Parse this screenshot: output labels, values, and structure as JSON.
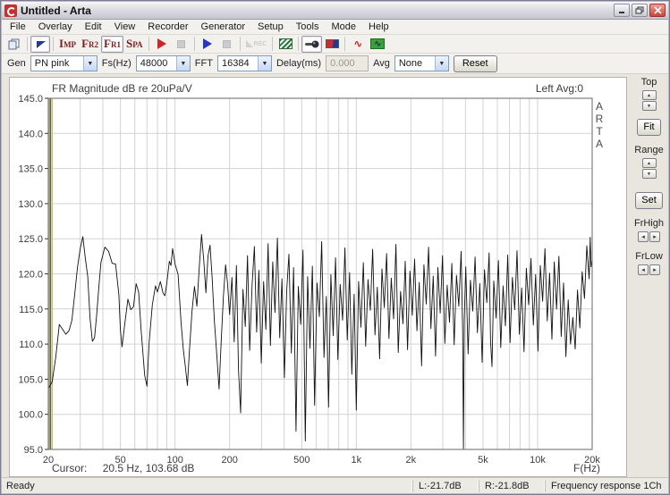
{
  "window": {
    "title": "Untitled - Arta"
  },
  "menu": {
    "items": [
      "File",
      "Overlay",
      "Edit",
      "View",
      "Recorder",
      "Generator",
      "Setup",
      "Tools",
      "Mode",
      "Help"
    ]
  },
  "toolbar": {
    "imp": "IMP",
    "fr2": "FR2",
    "fr1": "FR1",
    "spa": "SPA",
    "rec": "REC"
  },
  "controls": {
    "gen_label": "Gen",
    "gen_value": "PN pink",
    "fs_label": "Fs(Hz)",
    "fs_value": "48000",
    "fft_label": "FFT",
    "fft_value": "16384",
    "delay_label": "Delay(ms)",
    "delay_value": "0.000",
    "avg_label": "Avg",
    "avg_value": "None",
    "reset_label": "Reset"
  },
  "plot": {
    "title": "FR Magnitude dB re 20uPa/V",
    "channel_info": "Left  Avg:0",
    "arta": [
      "A",
      "R",
      "T",
      "A"
    ],
    "cursor_label": "Cursor:",
    "cursor_value": "20.5 Hz, 103.68 dB",
    "xaxis_label": "F(Hz)"
  },
  "side_panel": {
    "top_label": "Top",
    "fit_label": "Fit",
    "range_label": "Range",
    "set_label": "Set",
    "frhigh_label": "FrHigh",
    "frlow_label": "FrLow"
  },
  "status": {
    "ready": "Ready",
    "left_db": "L:-21.7dB",
    "right_db": "R:-21.8dB",
    "mode": "Frequency response 1Ch"
  },
  "colors": {
    "trace": "#111111",
    "grid": "#d2d2d2",
    "axis_band": "#d9d9a8",
    "border": "#7f7f7f",
    "cursor": "#222222"
  },
  "chart_data": {
    "type": "line",
    "title": "FR Magnitude dB re 20uPa/V",
    "xlabel": "F(Hz)",
    "ylabel": "dB re 20uPa/V",
    "x_scale": "log",
    "fmin": 20,
    "fmax": 20000,
    "ymin": 95,
    "ymax": 145,
    "cursor_hz": 20.5,
    "cursor_db": 103.68,
    "x_ticks": [
      {
        "f": 20,
        "label": "20"
      },
      {
        "f": 50,
        "label": "50"
      },
      {
        "f": 100,
        "label": "100"
      },
      {
        "f": 200,
        "label": "200"
      },
      {
        "f": 500,
        "label": "500"
      },
      {
        "f": 1000,
        "label": "1k"
      },
      {
        "f": 2000,
        "label": "2k"
      },
      {
        "f": 5000,
        "label": "5k"
      },
      {
        "f": 10000,
        "label": "10k"
      },
      {
        "f": 20000,
        "label": "20k"
      }
    ],
    "grid_freqs": [
      30,
      40,
      50,
      60,
      70,
      80,
      90,
      100,
      200,
      300,
      400,
      500,
      600,
      700,
      800,
      900,
      1000,
      2000,
      3000,
      4000,
      5000,
      6000,
      7000,
      8000,
      9000,
      10000,
      20000
    ],
    "y_ticks": [
      {
        "v": 145,
        "label": "145.0"
      },
      {
        "v": 140,
        "label": "140.0"
      },
      {
        "v": 135,
        "label": "135.0"
      },
      {
        "v": 130,
        "label": "130.0"
      },
      {
        "v": 125,
        "label": "125.0"
      },
      {
        "v": 120,
        "label": "120.0"
      },
      {
        "v": 115,
        "label": "115.0"
      },
      {
        "v": 110,
        "label": "110.0"
      },
      {
        "v": 105,
        "label": "105.0"
      },
      {
        "v": 100,
        "label": "100.0"
      },
      {
        "v": 95,
        "label": "95.0"
      }
    ],
    "series": [
      {
        "name": "Left",
        "points": [
          [
            20,
            103.7
          ],
          [
            21,
            104.6
          ],
          [
            22,
            108.2
          ],
          [
            23,
            112.8
          ],
          [
            24,
            112.1
          ],
          [
            25,
            111.4
          ],
          [
            26,
            111.9
          ],
          [
            27,
            113.4
          ],
          [
            28,
            117.2
          ],
          [
            29,
            121.0
          ],
          [
            30,
            123.6
          ],
          [
            31,
            125.3
          ],
          [
            32,
            122.2
          ],
          [
            33,
            119.6
          ],
          [
            34,
            113.6
          ],
          [
            35,
            110.4
          ],
          [
            36,
            110.9
          ],
          [
            37,
            114.2
          ],
          [
            38,
            118.1
          ],
          [
            39,
            121.6
          ],
          [
            41,
            123.8
          ],
          [
            43,
            123.2
          ],
          [
            45,
            121.5
          ],
          [
            47,
            121.4
          ],
          [
            49,
            117.0
          ],
          [
            50,
            112.0
          ],
          [
            51,
            109.6
          ],
          [
            53,
            113.2
          ],
          [
            55,
            116.4
          ],
          [
            57,
            114.9
          ],
          [
            59,
            115.3
          ],
          [
            61,
            118.6
          ],
          [
            63,
            117.4
          ],
          [
            65,
            112.1
          ],
          [
            68,
            105.6
          ],
          [
            70,
            104.0
          ],
          [
            72,
            110.2
          ],
          [
            75,
            115.6
          ],
          [
            78,
            118.3
          ],
          [
            80,
            117.4
          ],
          [
            83,
            118.9
          ],
          [
            86,
            117.2
          ],
          [
            88,
            116.9
          ],
          [
            90,
            118.6
          ],
          [
            93,
            121.8
          ],
          [
            95,
            121.2
          ],
          [
            97,
            123.6
          ],
          [
            100,
            121.4
          ],
          [
            104,
            119.9
          ],
          [
            108,
            113.1
          ],
          [
            111,
            109.4
          ],
          [
            114,
            106.8
          ],
          [
            117,
            104.1
          ],
          [
            120,
            108.9
          ],
          [
            124,
            114.6
          ],
          [
            128,
            118.2
          ],
          [
            132,
            115.4
          ],
          [
            136,
            120.8
          ],
          [
            140,
            125.6
          ],
          [
            144,
            121.9
          ],
          [
            148,
            117.3
          ],
          [
            152,
            122.5
          ],
          [
            156,
            124.1
          ],
          [
            160,
            119.8
          ],
          [
            165,
            113.2
          ],
          [
            170,
            108.4
          ],
          [
            175,
            103.6
          ],
          [
            180,
            110.7
          ],
          [
            185,
            116.9
          ],
          [
            190,
            121.3
          ],
          [
            195,
            118.6
          ],
          [
            200,
            114.2
          ],
          [
            206,
            119.5
          ],
          [
            212,
            110.3
          ],
          [
            218,
            121.2
          ],
          [
            224,
            106.4
          ],
          [
            230,
            100.2
          ],
          [
            237,
            117.8
          ],
          [
            244,
            112.5
          ],
          [
            251,
            122.6
          ],
          [
            258,
            109.1
          ],
          [
            266,
            118.4
          ],
          [
            274,
            123.9
          ],
          [
            282,
            111.7
          ],
          [
            290,
            120.5
          ],
          [
            299,
            107.3
          ],
          [
            308,
            118.9
          ],
          [
            317,
            112.1
          ],
          [
            326,
            124.3
          ],
          [
            336,
            109.8
          ],
          [
            346,
            121.7
          ],
          [
            356,
            114.5
          ],
          [
            367,
            125.1
          ],
          [
            378,
            110.9
          ],
          [
            389,
            119.3
          ],
          [
            401,
            105.2
          ],
          [
            413,
            117.6
          ],
          [
            425,
            122.8
          ],
          [
            438,
            108.7
          ],
          [
            451,
            120.9
          ],
          [
            465,
            97.6
          ],
          [
            479,
            118.2
          ],
          [
            493,
            112.8
          ],
          [
            508,
            123.4
          ],
          [
            523,
            96.2
          ],
          [
            539,
            119.6
          ],
          [
            555,
            109.4
          ],
          [
            572,
            121.1
          ],
          [
            589,
            101.3
          ],
          [
            607,
            118.7
          ],
          [
            625,
            113.9
          ],
          [
            644,
            124.6
          ],
          [
            663,
            108.1
          ],
          [
            683,
            116.8
          ],
          [
            703,
            101.0
          ],
          [
            724,
            119.9
          ],
          [
            746,
            111.2
          ],
          [
            768,
            122.3
          ],
          [
            791,
            107.8
          ],
          [
            815,
            118.5
          ],
          [
            840,
            113.4
          ],
          [
            865,
            123.7
          ],
          [
            891,
            110.6
          ],
          [
            918,
            120.2
          ],
          [
            945,
            105.7
          ],
          [
            973,
            117.1
          ],
          [
            1000,
            100.6
          ],
          [
            1030,
            118.9
          ],
          [
            1061,
            112.4
          ],
          [
            1093,
            121.6
          ],
          [
            1126,
            109.7
          ],
          [
            1160,
            119.2
          ],
          [
            1195,
            114.8
          ],
          [
            1231,
            123.5
          ],
          [
            1268,
            111.3
          ],
          [
            1306,
            118.1
          ],
          [
            1345,
            107.9
          ],
          [
            1385,
            120.7
          ],
          [
            1427,
            115.2
          ],
          [
            1470,
            122.9
          ],
          [
            1514,
            110.8
          ],
          [
            1559,
            119.4
          ],
          [
            1606,
            113.6
          ],
          [
            1654,
            124.2
          ],
          [
            1704,
            108.8
          ],
          [
            1755,
            117.5
          ],
          [
            1808,
            112.9
          ],
          [
            1862,
            121.8
          ],
          [
            1918,
            109.2
          ],
          [
            1976,
            120.4
          ],
          [
            2035,
            114.1
          ],
          [
            2096,
            122.1
          ],
          [
            2159,
            111.9
          ],
          [
            2224,
            118.8
          ],
          [
            2291,
            106.9
          ],
          [
            2360,
            121.3
          ],
          [
            2431,
            115.7
          ],
          [
            2504,
            123.8
          ],
          [
            2579,
            112.2
          ],
          [
            2656,
            119.7
          ],
          [
            2736,
            108.3
          ],
          [
            2818,
            120.9
          ],
          [
            2903,
            114.4
          ],
          [
            2990,
            122.6
          ],
          [
            3080,
            110.1
          ],
          [
            3172,
            118.4
          ],
          [
            3267,
            113.1
          ],
          [
            3365,
            121.5
          ],
          [
            3466,
            109.9
          ],
          [
            3570,
            119.8
          ],
          [
            3677,
            115.4
          ],
          [
            3787,
            123.2
          ],
          [
            3860,
            112.0
          ],
          [
            3900,
            95.0
          ],
          [
            3940,
            113.5
          ],
          [
            4018,
            121.0
          ],
          [
            4138,
            108.6
          ],
          [
            4262,
            119.1
          ],
          [
            4390,
            114.7
          ],
          [
            4522,
            122.4
          ],
          [
            4658,
            111.6
          ],
          [
            4798,
            118.6
          ],
          [
            4942,
            107.4
          ],
          [
            5090,
            120.6
          ],
          [
            5243,
            115.9
          ],
          [
            5400,
            123.0
          ],
          [
            5500,
            110.4
          ],
          [
            5600,
            106.8
          ],
          [
            5730,
            119.0
          ],
          [
            5902,
            113.7
          ],
          [
            6079,
            121.9
          ],
          [
            6261,
            109.5
          ],
          [
            6449,
            118.3
          ],
          [
            6642,
            112.6
          ],
          [
            6841,
            122.7
          ],
          [
            7046,
            110.2
          ],
          [
            7257,
            119.5
          ],
          [
            7475,
            114.9
          ],
          [
            7699,
            123.3
          ],
          [
            7930,
            111.4
          ],
          [
            8168,
            118.0
          ],
          [
            8413,
            108.9
          ],
          [
            8665,
            120.8
          ],
          [
            8925,
            115.6
          ],
          [
            9193,
            122.2
          ],
          [
            9469,
            112.7
          ],
          [
            9753,
            119.9
          ],
          [
            10045,
            109.0
          ],
          [
            10346,
            121.2
          ],
          [
            10656,
            116.1
          ],
          [
            10976,
            123.6
          ],
          [
            11305,
            113.3
          ],
          [
            11644,
            120.1
          ],
          [
            11993,
            110.7
          ],
          [
            12353,
            121.7
          ],
          [
            12724,
            115.0
          ],
          [
            13106,
            122.5
          ],
          [
            13499,
            111.1
          ],
          [
            13904,
            118.7
          ],
          [
            14321,
            108.2
          ],
          [
            14751,
            116.3
          ],
          [
            15194,
            110.0
          ],
          [
            15650,
            113.8
          ],
          [
            16120,
            109.3
          ],
          [
            16604,
            117.7
          ],
          [
            17102,
            112.3
          ],
          [
            17615,
            120.3
          ],
          [
            18143,
            116.5
          ],
          [
            18688,
            124.0
          ],
          [
            19249,
            119.3
          ],
          [
            19500,
            125.2
          ],
          [
            19700,
            121.0
          ],
          [
            20000,
            122.0
          ]
        ]
      }
    ]
  }
}
